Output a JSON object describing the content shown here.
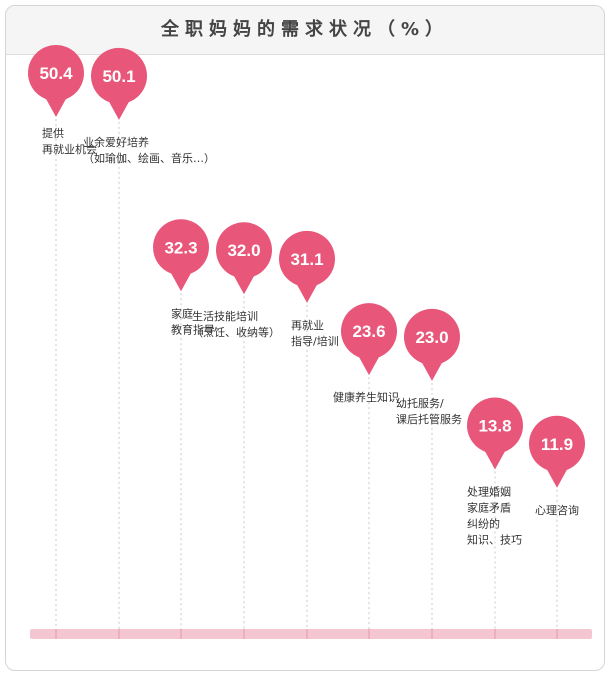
{
  "chart_data": {
    "type": "bar",
    "title": "全职妈妈的需求状况（%）",
    "categories": [
      [
        "提供",
        "再就业机会"
      ],
      [
        "业余爱好培养",
        "（如瑜伽、绘画、音乐…）"
      ],
      [
        "家庭",
        "教育指导"
      ],
      [
        "生活技能培训",
        "（烹饪、收纳等）"
      ],
      [
        "再就业",
        "指导/培训"
      ],
      [
        "健康养生知识"
      ],
      [
        "幼托服务/",
        "课后托管服务"
      ],
      [
        "处理婚姻",
        "家庭矛盾",
        "纠纷的",
        "知识、技巧"
      ],
      [
        "心理咨询"
      ]
    ],
    "values": [
      50.4,
      50.1,
      32.3,
      32.0,
      31.1,
      23.6,
      23.0,
      13.8,
      11.9
    ],
    "value_labels": [
      "50.4",
      "50.1",
      "32.3",
      "32.0",
      "31.1",
      "23.6",
      "23.0",
      "13.8",
      "11.9"
    ],
    "marker_color": "#e8577a",
    "baseline_color": "#f4c6d2",
    "guide_color": "#c8c8c8"
  }
}
